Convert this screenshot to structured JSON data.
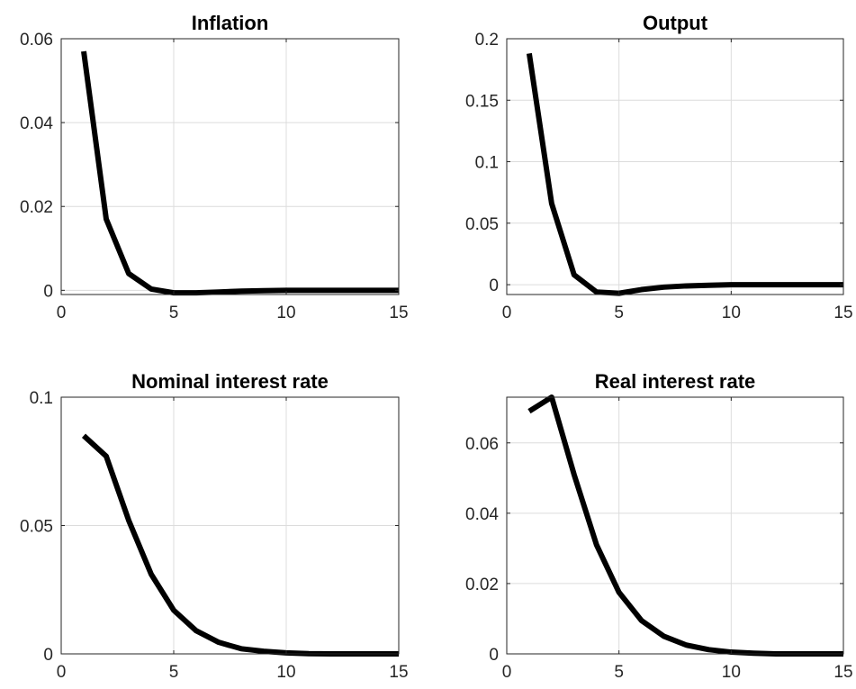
{
  "chart_data": [
    {
      "type": "line",
      "title": "Inflation",
      "xlim": [
        0,
        15
      ],
      "ylim": [
        -0.001,
        0.06
      ],
      "xticks": [
        0,
        5,
        10,
        15
      ],
      "xtick_labels": [
        "0",
        "5",
        "10",
        "15"
      ],
      "yticks": [
        0,
        0.02,
        0.04,
        0.06
      ],
      "ytick_labels": [
        "0",
        "0.02",
        "0.04",
        "0.06"
      ],
      "grid": true,
      "series": [
        {
          "color": "#000000",
          "x": [
            1,
            2,
            3,
            4,
            5,
            6,
            7,
            8,
            9,
            10,
            11,
            12,
            13,
            14,
            15
          ],
          "y": [
            0.057,
            0.017,
            0.004,
            0.0003,
            -0.0006,
            -0.0006,
            -0.0004,
            -0.0002,
            -0.0001,
            0,
            0,
            0,
            0,
            0,
            0
          ]
        }
      ]
    },
    {
      "type": "line",
      "title": "Output",
      "xlim": [
        0,
        15
      ],
      "ylim": [
        -0.008,
        0.2
      ],
      "xticks": [
        0,
        5,
        10,
        15
      ],
      "xtick_labels": [
        "0",
        "5",
        "10",
        "15"
      ],
      "yticks": [
        0,
        0.05,
        0.1,
        0.15,
        0.2
      ],
      "ytick_labels": [
        "0",
        "0.05",
        "0.1",
        "0.15",
        "0.2"
      ],
      "grid": true,
      "series": [
        {
          "color": "#000000",
          "x": [
            1,
            2,
            3,
            4,
            5,
            6,
            7,
            8,
            9,
            10,
            11,
            12,
            13,
            14,
            15
          ],
          "y": [
            0.188,
            0.066,
            0.008,
            -0.006,
            -0.007,
            -0.004,
            -0.002,
            -0.001,
            -0.0005,
            0,
            0,
            0,
            0,
            0,
            0
          ]
        }
      ]
    },
    {
      "type": "line",
      "title": "Nominal interest rate",
      "xlim": [
        0,
        15
      ],
      "ylim": [
        0,
        0.1
      ],
      "xticks": [
        0,
        5,
        10,
        15
      ],
      "xtick_labels": [
        "0",
        "5",
        "10",
        "15"
      ],
      "yticks": [
        0,
        0.05,
        0.1
      ],
      "ytick_labels": [
        "0",
        "0.05",
        "0.1"
      ],
      "grid": true,
      "series": [
        {
          "color": "#000000",
          "x": [
            1,
            2,
            3,
            4,
            5,
            6,
            7,
            8,
            9,
            10,
            11,
            12,
            13,
            14,
            15
          ],
          "y": [
            0.085,
            0.077,
            0.052,
            0.031,
            0.017,
            0.009,
            0.0045,
            0.002,
            0.001,
            0.0004,
            0.0001,
            0,
            0,
            0,
            0
          ]
        }
      ]
    },
    {
      "type": "line",
      "title": "Real interest rate",
      "xlim": [
        0,
        15
      ],
      "ylim": [
        0,
        0.073
      ],
      "xticks": [
        0,
        5,
        10,
        15
      ],
      "xtick_labels": [
        "0",
        "5",
        "10",
        "15"
      ],
      "yticks": [
        0,
        0.02,
        0.04,
        0.06
      ],
      "ytick_labels": [
        "0",
        "0.02",
        "0.04",
        "0.06"
      ],
      "grid": true,
      "series": [
        {
          "color": "#000000",
          "x": [
            1,
            2,
            3,
            4,
            5,
            6,
            7,
            8,
            9,
            10,
            11,
            12,
            13,
            14,
            15
          ],
          "y": [
            0.069,
            0.073,
            0.051,
            0.031,
            0.0175,
            0.0095,
            0.005,
            0.0025,
            0.0012,
            0.0005,
            0.0002,
            0,
            0,
            0,
            0
          ]
        }
      ]
    }
  ]
}
